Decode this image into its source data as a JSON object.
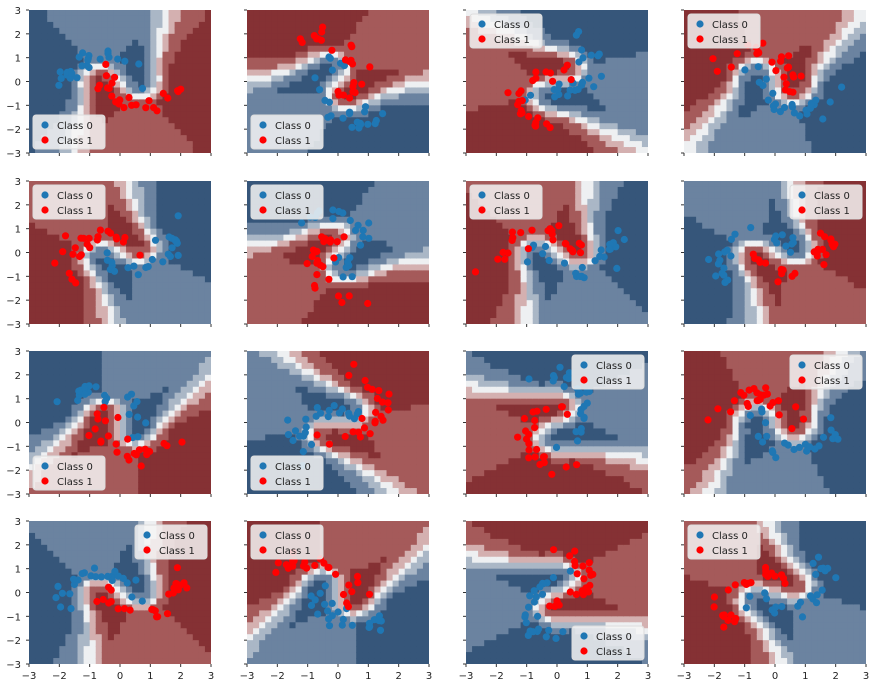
{
  "colors": {
    "class0": "#1f77b4",
    "class1": "#ff0000",
    "rdbu": [
      "#36567a",
      "#6b83a0",
      "#aab7c6",
      "#eef0f2",
      "#d4b0b0",
      "#a55a5a",
      "#853134"
    ]
  },
  "legend_labels": [
    "Class 0",
    "Class 1"
  ],
  "chart_data": {
    "type": "scatter",
    "description_layout": "4x4 grid of decision-boundary scatter plots",
    "xlim": [
      -3,
      3
    ],
    "ylim": [
      -3,
      3
    ],
    "x_ticks": [
      "−3",
      "−2",
      "−1",
      "0",
      "1",
      "2",
      "3"
    ],
    "y_ticks": [
      "−3",
      "−2",
      "−1",
      "0",
      "1",
      "2",
      "3"
    ],
    "grid": false,
    "series_labels": [
      "Class 0",
      "Class 1"
    ],
    "panels": [
      {
        "rot": 0,
        "legend": "bottom-left",
        "seed": 11
      },
      {
        "rot": 120,
        "legend": "bottom-left",
        "seed": 12
      },
      {
        "rot": 250,
        "legend": "top-left",
        "seed": 13
      },
      {
        "rot": 160,
        "legend": "top-left",
        "seed": 14
      },
      {
        "rot": 205,
        "legend": "top-left",
        "seed": 21
      },
      {
        "rot": 295,
        "legend": "top-left",
        "seed": 22
      },
      {
        "rot": 190,
        "legend": "top-left",
        "seed": 23
      },
      {
        "rot": 20,
        "legend": "top-right",
        "seed": 24
      },
      {
        "rot": 330,
        "legend": "bottom-left",
        "seed": 31
      },
      {
        "rot": 60,
        "legend": "bottom-left",
        "seed": 32
      },
      {
        "rot": 270,
        "legend": "top-right",
        "seed": 33
      },
      {
        "rot": 170,
        "legend": "top-right",
        "seed": 34
      },
      {
        "rot": 10,
        "legend": "top-right",
        "seed": 41
      },
      {
        "rot": 150,
        "legend": "top-left",
        "seed": 42
      },
      {
        "rot": 90,
        "legend": "bottom-right",
        "seed": 43
      },
      {
        "rot": 215,
        "legend": "top-left",
        "seed": 44
      }
    ]
  }
}
